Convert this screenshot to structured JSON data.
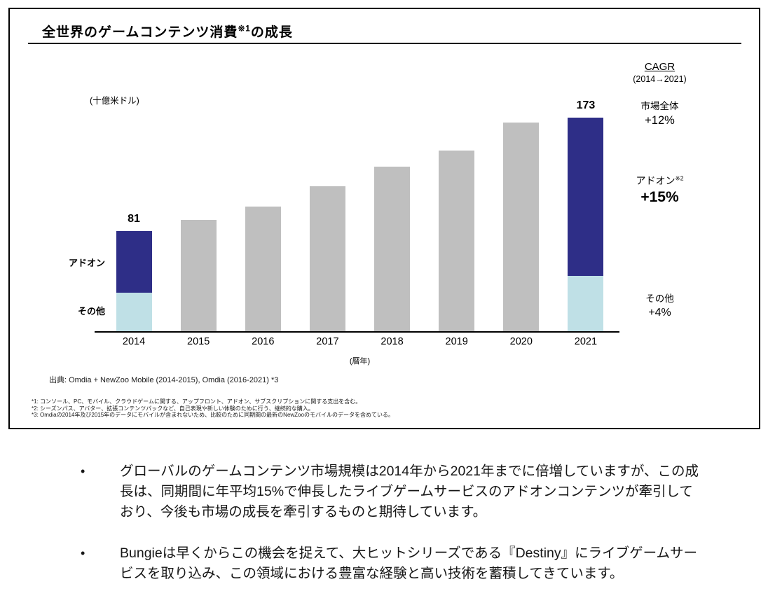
{
  "slide": {
    "title_text": "全世界のゲームコンテンツ消費",
    "title_sup": "※1",
    "title_suffix": "の成長",
    "y_axis_unit": "(十億米ドル)",
    "x_axis_unit": "(暦年)",
    "source": "出典: Omdia + NewZoo Mobile (2014-2015), Omdia (2016-2021) *3",
    "footnotes": [
      "*1: コンソール、PC、モバイル、クラウドゲームに関する、アップフロント、アドオン、サブスクリプションに関する支出を含む。",
      "*2: シーズンパス、アバター、拡張コンテンツパックなど、自己表現や新しい体験のために行う、継続的な購入。",
      "*3: Omdiaの2014年及び2015年のデータにモバイルが含まれないため、比較のために同期間の最新のNewZooのモバイルのデータを含めている。"
    ]
  },
  "cagr": {
    "header": "CAGR",
    "period": "(2014→2021)",
    "market_label": "市場全体",
    "market_value": "+12%",
    "addon_label": "アドオン",
    "addon_sup": "※2",
    "addon_value": "+15%",
    "others_label": "その他",
    "others_value": "+4%"
  },
  "chart_data": {
    "type": "bar",
    "stacked": true,
    "title": "全世界のゲームコンテンツ消費※1の成長",
    "ylabel": "(十億米ドル)",
    "xlabel": "(暦年)",
    "categories": [
      "2014",
      "2015",
      "2016",
      "2017",
      "2018",
      "2019",
      "2020",
      "2021"
    ],
    "totals": [
      81,
      90,
      101,
      117,
      133,
      146,
      169,
      173
    ],
    "labeled_totals": {
      "2014": "81",
      "2021": "173"
    },
    "stacks": {
      "2014": {
        "addon": 50,
        "others": 31
      },
      "2021": {
        "addon": 128,
        "others": 45
      }
    },
    "series_labels": {
      "addon": "アドオン",
      "others": "その他"
    },
    "colors": {
      "addon": "#2E2E87",
      "others": "#BFE0E6",
      "unsegmented": "#BFBFBF"
    },
    "ylim": [
      0,
      180
    ],
    "grid": false,
    "legend_position": "left-of-2014-bar"
  },
  "bullets": [
    "グローバルのゲームコンテンツ市場規模は2014年から2021年までに倍増していますが、この成長は、同期間に年平均15%で伸長したライブゲームサービスのアドオンコンテンツが牽引しており、今後も市場の成長を牽引するものと期待しています。",
    "Bungieは早くからこの機会を捉えて、大ヒットシリーズである『Destiny』にライブゲームサービスを取り込み、この領域における豊富な経験と高い技術を蓄積してきています。"
  ],
  "bullet_marker": "•"
}
